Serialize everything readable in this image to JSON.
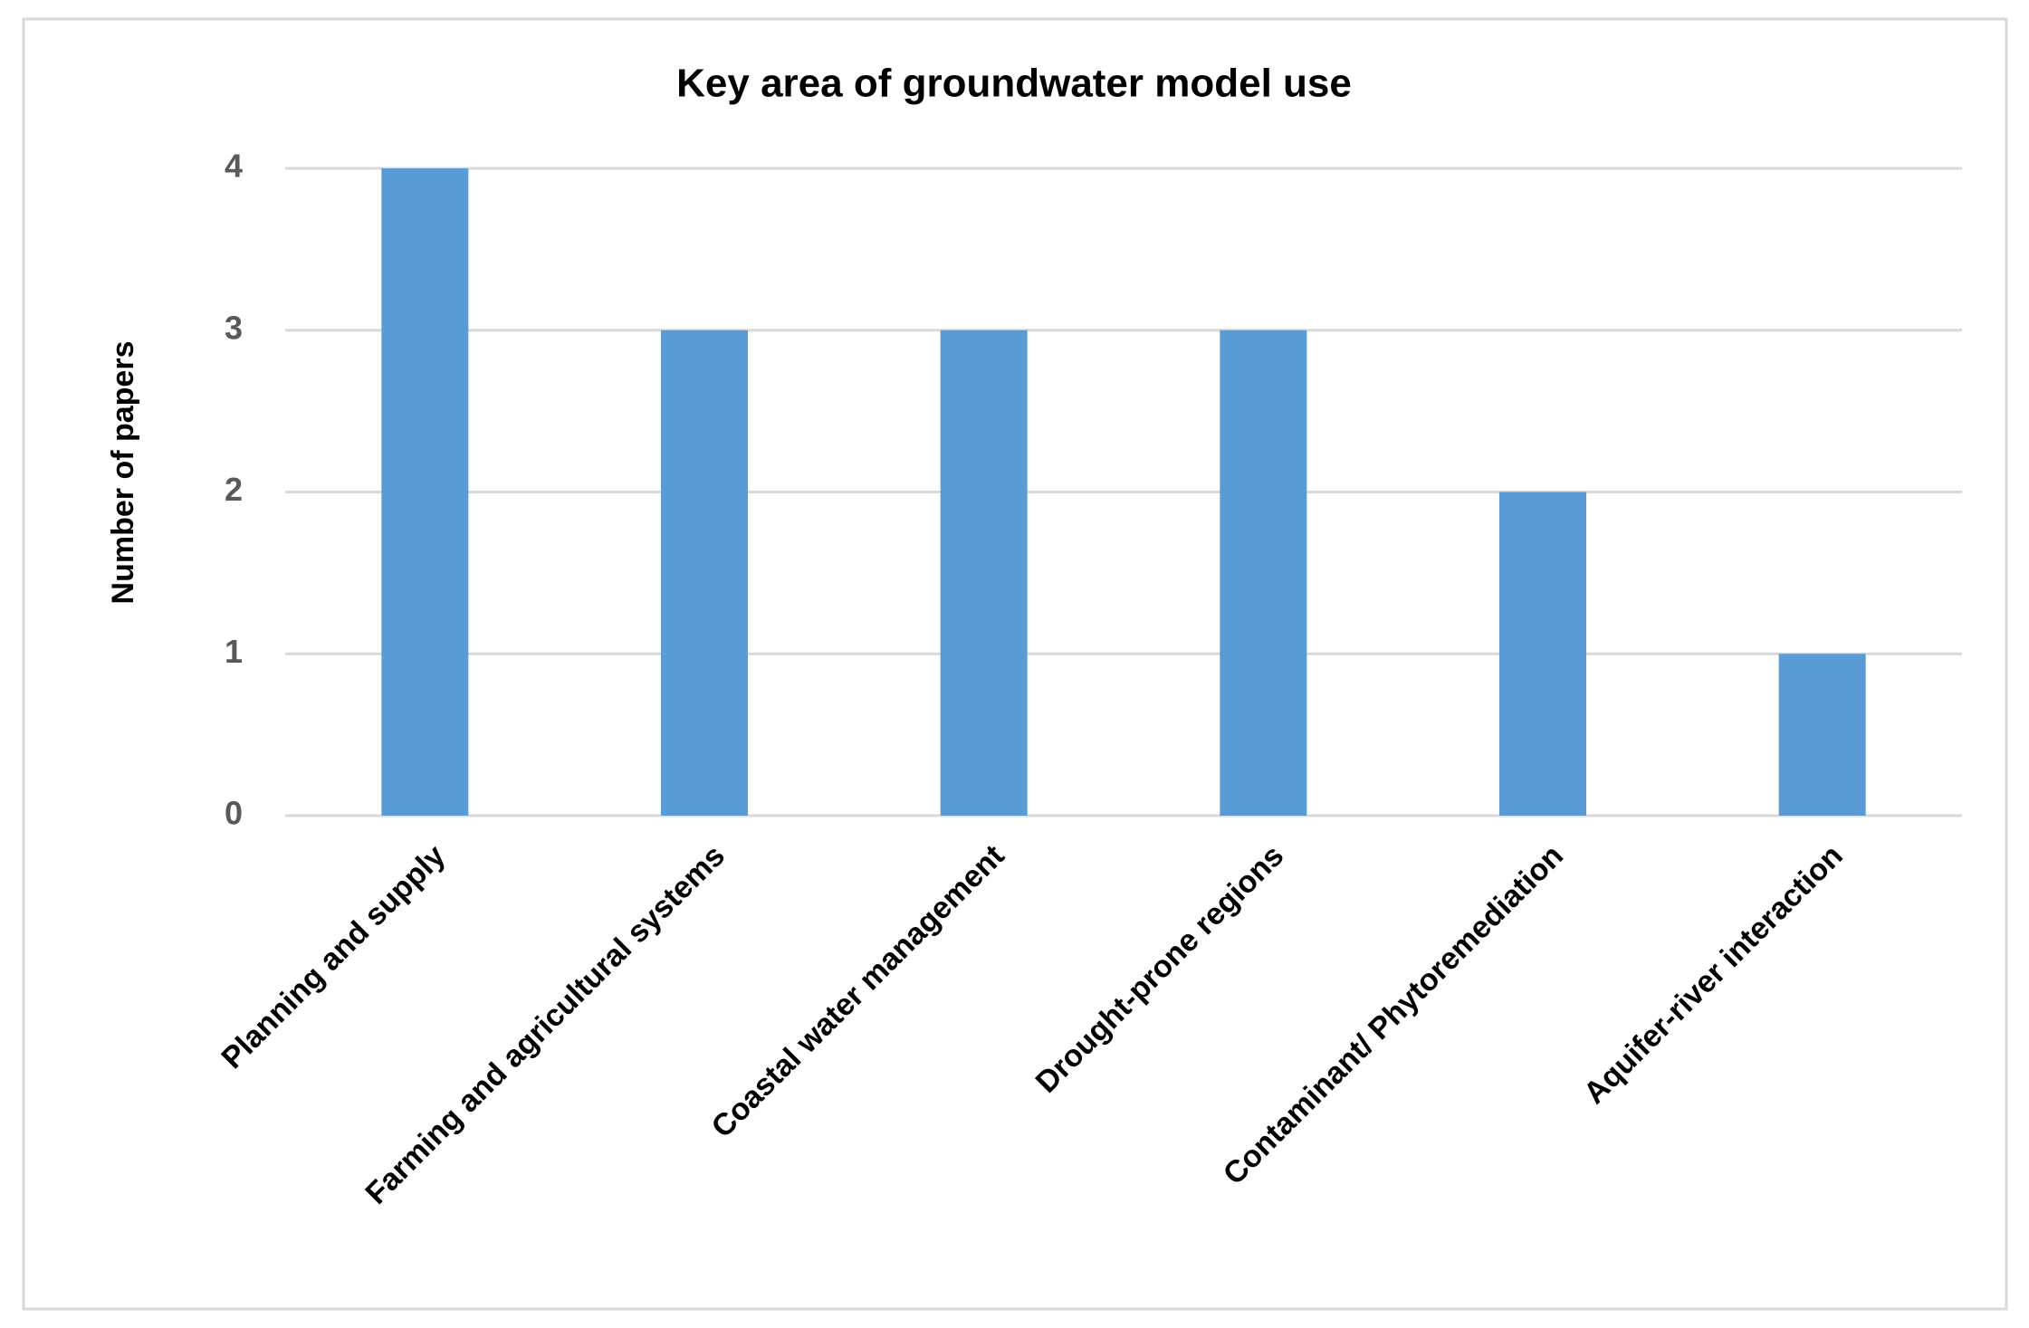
{
  "chart_data": {
    "type": "bar",
    "title": "Key area of groundwater model use",
    "y_label": "Number of papers",
    "categories": [
      "Planning and supply",
      "Farming and agricultural systems",
      "Coastal water management",
      "Drought-prone regions",
      "Contaminant/ Phytoremediation",
      "Aquifer-river interaction"
    ],
    "values": [
      4,
      3,
      3,
      3,
      2,
      1
    ],
    "color": "#5b9bd5",
    "ylim": [
      0,
      4
    ],
    "yticks": [
      0,
      1,
      2,
      3,
      4
    ],
    "grid": true
  }
}
